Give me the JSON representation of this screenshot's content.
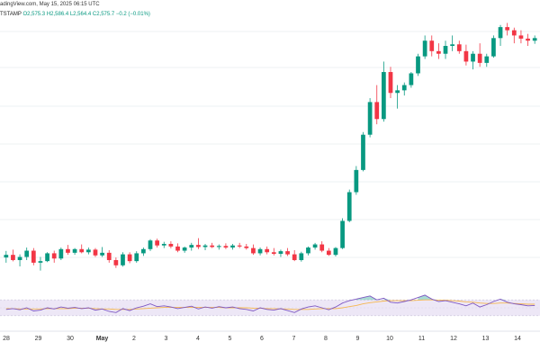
{
  "header": {
    "source": "adingView.com, May 15, 2025 06:15 UTC",
    "symbol": "TSTAMP",
    "ohlc": {
      "o": "O2,575.3",
      "h": "H2,586.4",
      "l": "L2,564.4",
      "c": "C2,575.7",
      "change": "−0.2 (−0.01%)"
    }
  },
  "colors": {
    "up": "#089981",
    "down": "#f23645",
    "grid": "#eef0f3",
    "rsi_line": "#7e57c2",
    "rsi_ma": "#f5b74f",
    "rsi_band": "#ede7f6"
  },
  "chart_data": [
    {
      "type": "candlestick",
      "x_labels": [
        "28",
        "29",
        "30",
        "May",
        "2",
        "3",
        "4",
        "5",
        "6",
        "7",
        "8",
        "9",
        "10",
        "11",
        "12",
        "13",
        "14"
      ],
      "ylim": [
        1700,
        2720
      ],
      "candles": [
        [
          1810,
          1835,
          1790,
          1820
        ],
        [
          1820,
          1840,
          1795,
          1800
        ],
        [
          1800,
          1822,
          1776,
          1812
        ],
        [
          1812,
          1848,
          1800,
          1836
        ],
        [
          1836,
          1846,
          1780,
          1790
        ],
        [
          1790,
          1812,
          1760,
          1796
        ],
        [
          1796,
          1830,
          1792,
          1826
        ],
        [
          1826,
          1836,
          1790,
          1806
        ],
        [
          1806,
          1848,
          1800,
          1842
        ],
        [
          1842,
          1858,
          1820,
          1828
        ],
        [
          1828,
          1846,
          1820,
          1842
        ],
        [
          1842,
          1860,
          1826,
          1830
        ],
        [
          1830,
          1848,
          1822,
          1840
        ],
        [
          1840,
          1846,
          1812,
          1818
        ],
        [
          1818,
          1850,
          1812,
          1828
        ],
        [
          1828,
          1838,
          1790,
          1800
        ],
        [
          1800,
          1810,
          1770,
          1780
        ],
        [
          1780,
          1830,
          1775,
          1822
        ],
        [
          1822,
          1830,
          1788,
          1796
        ],
        [
          1796,
          1834,
          1790,
          1826
        ],
        [
          1826,
          1848,
          1816,
          1842
        ],
        [
          1842,
          1880,
          1835,
          1875
        ],
        [
          1875,
          1882,
          1848,
          1856
        ],
        [
          1856,
          1870,
          1846,
          1862
        ],
        [
          1862,
          1872,
          1845,
          1852
        ],
        [
          1852,
          1864,
          1830,
          1836
        ],
        [
          1836,
          1852,
          1828,
          1848
        ],
        [
          1848,
          1866,
          1836,
          1858
        ],
        [
          1858,
          1884,
          1842,
          1850
        ],
        [
          1850,
          1862,
          1838,
          1856
        ],
        [
          1856,
          1866,
          1846,
          1850
        ],
        [
          1850,
          1860,
          1840,
          1854
        ],
        [
          1854,
          1864,
          1842,
          1848
        ],
        [
          1848,
          1862,
          1840,
          1856
        ],
        [
          1856,
          1866,
          1846,
          1852
        ],
        [
          1852,
          1862,
          1840,
          1846
        ],
        [
          1846,
          1860,
          1820,
          1826
        ],
        [
          1826,
          1848,
          1818,
          1842
        ],
        [
          1842,
          1852,
          1822,
          1830
        ],
        [
          1830,
          1846,
          1818,
          1824
        ],
        [
          1824,
          1840,
          1812,
          1834
        ],
        [
          1834,
          1846,
          1816,
          1822
        ],
        [
          1822,
          1838,
          1796,
          1800
        ],
        [
          1800,
          1832,
          1794,
          1826
        ],
        [
          1826,
          1852,
          1818,
          1848
        ],
        [
          1848,
          1866,
          1840,
          1860
        ],
        [
          1860,
          1872,
          1830,
          1836
        ],
        [
          1836,
          1846,
          1816,
          1820
        ],
        [
          1820,
          1850,
          1814,
          1846
        ],
        [
          1846,
          1960,
          1842,
          1950
        ],
        [
          1950,
          2070,
          1945,
          2060
        ],
        [
          2060,
          2160,
          2050,
          2145
        ],
        [
          2145,
          2290,
          2140,
          2280
        ],
        [
          2280,
          2420,
          2270,
          2405
        ],
        [
          2405,
          2470,
          2320,
          2340
        ],
        [
          2340,
          2560,
          2330,
          2520
        ],
        [
          2520,
          2540,
          2420,
          2440
        ],
        [
          2440,
          2470,
          2380,
          2450
        ],
        [
          2450,
          2480,
          2430,
          2470
        ],
        [
          2470,
          2520,
          2460,
          2515
        ],
        [
          2515,
          2590,
          2505,
          2580
        ],
        [
          2580,
          2660,
          2570,
          2640
        ],
        [
          2640,
          2660,
          2580,
          2600
        ],
        [
          2600,
          2630,
          2570,
          2590
        ],
        [
          2590,
          2640,
          2570,
          2620
        ],
        [
          2620,
          2660,
          2600,
          2626
        ],
        [
          2626,
          2640,
          2590,
          2600
        ],
        [
          2600,
          2625,
          2545,
          2560
        ],
        [
          2560,
          2600,
          2530,
          2590
        ],
        [
          2590,
          2630,
          2540,
          2555
        ],
        [
          2555,
          2590,
          2540,
          2580
        ],
        [
          2580,
          2660,
          2575,
          2650
        ],
        [
          2650,
          2700,
          2620,
          2692
        ],
        [
          2692,
          2708,
          2660,
          2680
        ],
        [
          2680,
          2690,
          2630,
          2660
        ],
        [
          2660,
          2680,
          2630,
          2648
        ],
        [
          2648,
          2666,
          2620,
          2640
        ],
        [
          2640,
          2660,
          2628,
          2650
        ]
      ]
    },
    {
      "type": "line",
      "panel": "oscillator",
      "ylim": [
        0,
        100
      ],
      "series": [
        {
          "values": [
            46,
            48,
            45,
            50,
            42,
            44,
            50,
            47,
            52,
            49,
            51,
            48,
            50,
            44,
            47,
            41,
            38,
            48,
            43,
            50,
            54,
            60,
            53,
            55,
            52,
            48,
            51,
            54,
            47,
            52,
            49,
            53,
            50,
            52,
            48,
            46,
            42,
            50,
            46,
            44,
            48,
            43,
            38,
            47,
            52,
            55,
            50,
            45,
            52,
            62,
            68,
            72,
            76,
            80,
            70,
            74,
            64,
            62,
            66,
            70,
            76,
            82,
            72,
            66,
            68,
            64,
            60,
            55,
            62,
            52,
            58,
            66,
            72,
            64,
            60,
            58,
            55,
            56
          ]
        },
        {
          "values": [
            48,
            48,
            47,
            47,
            47,
            47,
            48,
            48,
            48,
            48,
            49,
            49,
            49,
            48,
            47,
            47,
            46,
            46,
            46,
            47,
            48,
            49,
            50,
            51,
            51,
            51,
            51,
            51,
            51,
            51,
            51,
            51,
            50,
            50,
            50,
            50,
            49,
            49,
            48,
            48,
            47,
            47,
            46,
            46,
            46,
            47,
            48,
            48,
            48,
            50,
            53,
            56,
            60,
            63,
            65,
            67,
            68,
            68,
            68,
            68,
            69,
            70,
            70,
            69,
            69,
            68,
            67,
            65,
            64,
            62,
            61,
            61,
            62,
            62,
            61,
            60,
            59,
            59
          ]
        }
      ],
      "bands": [
        30,
        70
      ]
    }
  ]
}
